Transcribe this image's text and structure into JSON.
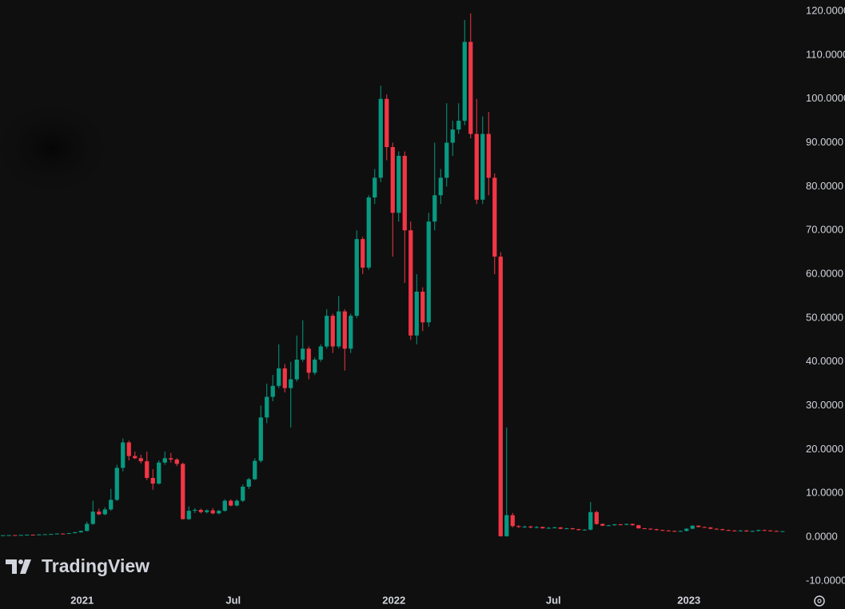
{
  "chart_data": {
    "type": "candlestick",
    "watermark": "TradingView",
    "colors": {
      "up": "#089981",
      "down": "#f23645"
    },
    "xlim": [
      -0.5,
      131.5
    ],
    "xticks": [
      {
        "value": 13.2,
        "label": "2021"
      },
      {
        "value": 38.4,
        "label": "Jul"
      },
      {
        "value": 65.2,
        "label": "2022"
      },
      {
        "value": 91.8,
        "label": "Jul"
      },
      {
        "value": 114.4,
        "label": "2023"
      }
    ],
    "ylim": [
      -12.4,
      122.56
    ],
    "yticks": [
      {
        "value": 120,
        "label": "120.0000"
      },
      {
        "value": 110,
        "label": "110.0000"
      },
      {
        "value": 100,
        "label": "100.0000"
      },
      {
        "value": 90,
        "label": "90.0000"
      },
      {
        "value": 80,
        "label": "80.0000"
      },
      {
        "value": 70,
        "label": "70.0000"
      },
      {
        "value": 60,
        "label": "60.0000"
      },
      {
        "value": 50,
        "label": "50.0000"
      },
      {
        "value": 40,
        "label": "40.0000"
      },
      {
        "value": 30,
        "label": "30.0000"
      },
      {
        "value": 20,
        "label": "20.0000"
      },
      {
        "value": 10,
        "label": "10.0000"
      },
      {
        "value": 0,
        "label": "0.0000"
      },
      {
        "value": -10,
        "label": "-10.0000"
      }
    ],
    "ohlc": [
      [
        0.38,
        0.45,
        0.35,
        0.42
      ],
      [
        0.42,
        0.48,
        0.4,
        0.45
      ],
      [
        0.45,
        0.48,
        0.4,
        0.43
      ],
      [
        0.43,
        0.52,
        0.42,
        0.5
      ],
      [
        0.5,
        0.58,
        0.48,
        0.55
      ],
      [
        0.55,
        0.58,
        0.5,
        0.52
      ],
      [
        0.52,
        0.62,
        0.5,
        0.6
      ],
      [
        0.6,
        0.68,
        0.58,
        0.65
      ],
      [
        0.65,
        0.75,
        0.62,
        0.7
      ],
      [
        0.7,
        0.85,
        0.68,
        0.8
      ],
      [
        0.8,
        0.85,
        0.7,
        0.75
      ],
      [
        0.75,
        0.95,
        0.72,
        0.9
      ],
      [
        0.9,
        1.2,
        0.85,
        1.1
      ],
      [
        1.1,
        1.5,
        1.0,
        1.4
      ],
      [
        1.4,
        3.5,
        1.3,
        3.0
      ],
      [
        3.0,
        8.3,
        2.8,
        5.8
      ],
      [
        5.8,
        6.5,
        5.0,
        5.2
      ],
      [
        5.2,
        6.8,
        5.0,
        6.3
      ],
      [
        6.3,
        11,
        6.0,
        8.5
      ],
      [
        8.5,
        16.5,
        8.2,
        15.8
      ],
      [
        15.8,
        22.5,
        15,
        21.6
      ],
      [
        21.6,
        22,
        17.5,
        18.5
      ],
      [
        18.5,
        19.5,
        17.8,
        18
      ],
      [
        18,
        18.8,
        16.8,
        17.3
      ],
      [
        17.3,
        19.5,
        13,
        13.5
      ],
      [
        13.5,
        15.5,
        10.8,
        12.2
      ],
      [
        12.2,
        17.5,
        12,
        17
      ],
      [
        17,
        19.5,
        16.5,
        18
      ],
      [
        18,
        19.2,
        17,
        17.7
      ],
      [
        17.7,
        18,
        16.2,
        16.7
      ],
      [
        16.7,
        17,
        4,
        4.1
      ],
      [
        4.1,
        7,
        3.9,
        6.0
      ],
      [
        6,
        6.6,
        5.5,
        6.2
      ],
      [
        6.2,
        6.5,
        5.4,
        5.7
      ],
      [
        5.7,
        6.3,
        5.4,
        6.1
      ],
      [
        6.1,
        6.6,
        5.2,
        5.4
      ],
      [
        5.4,
        6.2,
        5.2,
        6.0
      ],
      [
        6,
        8.6,
        5.8,
        8.3
      ],
      [
        8.3,
        8.6,
        7,
        7.2
      ],
      [
        7.2,
        8.6,
        7,
        8.3
      ],
      [
        8.3,
        12,
        8,
        11.5
      ],
      [
        11.5,
        13.5,
        11,
        13.2
      ],
      [
        13.2,
        18,
        13,
        17.4
      ],
      [
        17.4,
        30,
        17,
        27.3
      ],
      [
        27.3,
        35,
        26,
        32
      ],
      [
        32,
        37,
        31,
        34.5
      ],
      [
        34.5,
        44,
        34,
        38.5
      ],
      [
        38.5,
        39.5,
        33,
        34
      ],
      [
        34,
        40,
        25,
        36
      ],
      [
        36,
        46,
        35.5,
        40.5
      ],
      [
        40.5,
        49.5,
        40,
        43
      ],
      [
        43,
        43.5,
        36,
        37.5
      ],
      [
        37.5,
        41,
        37,
        40.5
      ],
      [
        40.5,
        44,
        40,
        43.5
      ],
      [
        43.5,
        52,
        43,
        50.5
      ],
      [
        50.5,
        51,
        42,
        43.5
      ],
      [
        43.5,
        55,
        43,
        51.5
      ],
      [
        51.5,
        52,
        38,
        43
      ],
      [
        43,
        51,
        42,
        50.5
      ],
      [
        50.5,
        70,
        50,
        68
      ],
      [
        68,
        68.5,
        60,
        61.5
      ],
      [
        61.5,
        78,
        61,
        77.5
      ],
      [
        77.5,
        84,
        76,
        82
      ],
      [
        82,
        103,
        81,
        100
      ],
      [
        100,
        101,
        86,
        89
      ],
      [
        89,
        90,
        64,
        74
      ],
      [
        74,
        88,
        72,
        87
      ],
      [
        87,
        88,
        58,
        70
      ],
      [
        70,
        72,
        45,
        46
      ],
      [
        46,
        60,
        44,
        56
      ],
      [
        56,
        57,
        47,
        49
      ],
      [
        49,
        74,
        48,
        72
      ],
      [
        72,
        90,
        70,
        78
      ],
      [
        78,
        84,
        76,
        82
      ],
      [
        82,
        99,
        80,
        90
      ],
      [
        90,
        95,
        87,
        93
      ],
      [
        93,
        99,
        92,
        95
      ],
      [
        95,
        118,
        94,
        113
      ],
      [
        113,
        119.5,
        91,
        92
      ],
      [
        92,
        100,
        76,
        77
      ],
      [
        77,
        96,
        76,
        92
      ],
      [
        92,
        97,
        78,
        82
      ],
      [
        82,
        83,
        60,
        64
      ],
      [
        64,
        65,
        0.1,
        0.2
      ],
      [
        0.2,
        25,
        0.1,
        5
      ],
      [
        5,
        5.5,
        2.2,
        2.5
      ],
      [
        2.5,
        2.7,
        2.1,
        2.3
      ],
      [
        2.3,
        2.6,
        2.1,
        2.4
      ],
      [
        2.4,
        2.6,
        2.0,
        2.2
      ],
      [
        2.2,
        2.5,
        2.0,
        2.3
      ],
      [
        2.3,
        2.4,
        1.9,
        2.0
      ],
      [
        2.0,
        2.3,
        1.9,
        2.1
      ],
      [
        2.1,
        2.4,
        2.0,
        2.2
      ],
      [
        2.2,
        2.3,
        1.8,
        1.9
      ],
      [
        1.9,
        2.1,
        1.8,
        2.0
      ],
      [
        2.0,
        2.1,
        1.7,
        1.8
      ],
      [
        1.8,
        1.9,
        1.5,
        1.6
      ],
      [
        1.6,
        1.8,
        1.5,
        1.7
      ],
      [
        1.7,
        8,
        1.5,
        5.7
      ],
      [
        5.7,
        6,
        2.8,
        3.0
      ],
      [
        3.0,
        3.1,
        2.5,
        2.6
      ],
      [
        2.6,
        2.8,
        2.5,
        2.7
      ],
      [
        2.7,
        3.0,
        2.6,
        2.9
      ],
      [
        2.9,
        3.0,
        2.7,
        2.8
      ],
      [
        2.8,
        3.1,
        2.7,
        3.0
      ],
      [
        3.0,
        3.1,
        2.6,
        2.7
      ],
      [
        2.7,
        2.8,
        1.9,
        2.0
      ],
      [
        2.0,
        2.1,
        1.8,
        1.9
      ],
      [
        1.9,
        2.0,
        1.7,
        1.8
      ],
      [
        1.8,
        1.9,
        1.5,
        1.6
      ],
      [
        1.6,
        1.7,
        1.4,
        1.5
      ],
      [
        1.5,
        1.6,
        1.3,
        1.4
      ],
      [
        1.4,
        1.5,
        1.2,
        1.3
      ],
      [
        1.3,
        1.5,
        1.2,
        1.4
      ],
      [
        1.4,
        2.0,
        1.3,
        1.9
      ],
      [
        1.9,
        2.7,
        1.8,
        2.6
      ],
      [
        2.6,
        2.7,
        2.2,
        2.3
      ],
      [
        2.3,
        2.4,
        2.1,
        2.2
      ],
      [
        2.2,
        2.3,
        1.8,
        1.9
      ],
      [
        1.9,
        2.0,
        1.7,
        1.8
      ],
      [
        1.8,
        1.9,
        1.5,
        1.6
      ],
      [
        1.6,
        1.7,
        1.4,
        1.5
      ],
      [
        1.5,
        1.6,
        1.3,
        1.4
      ],
      [
        1.4,
        1.6,
        1.3,
        1.5
      ],
      [
        1.5,
        1.6,
        1.2,
        1.3
      ],
      [
        1.3,
        1.5,
        1.2,
        1.4
      ],
      [
        1.4,
        1.7,
        1.3,
        1.6
      ],
      [
        1.6,
        1.7,
        1.4,
        1.5
      ],
      [
        1.5,
        1.6,
        1.3,
        1.4
      ],
      [
        1.4,
        1.5,
        1.2,
        1.3
      ],
      [
        1.3,
        1.4,
        1.2,
        1.35
      ]
    ]
  }
}
